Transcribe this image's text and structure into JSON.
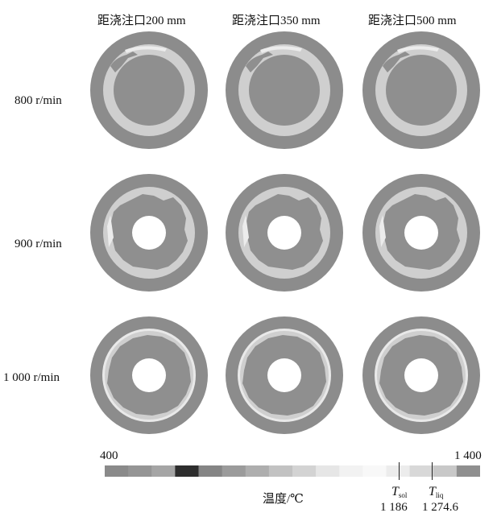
{
  "columns": [
    "距浇注口200 mm",
    "距浇注口350 mm",
    "距浇注口500 mm"
  ],
  "rows": [
    "800 r/min",
    "900 r/min",
    "1 000 r/min"
  ],
  "legend": {
    "min_label": "400",
    "max_label": "1 400",
    "title": "温度/℃",
    "solidus": {
      "symbol": "T",
      "sub": "sol",
      "value": "1 186"
    },
    "liquidus": {
      "symbol": "T",
      "sub": "liq",
      "value": "1 274.6"
    },
    "colors": [
      "#8a8a8a",
      "#959595",
      "#a5a5a5",
      "#2e2e2e",
      "#858585",
      "#9b9b9b",
      "#aeaeae",
      "#c2c2c2",
      "#d3d3d3",
      "#e6e6e6",
      "#f2f2f2",
      "#f8f8f8",
      "#ececec",
      "#d8d8d8",
      "#c8c8c8",
      "#8f8f8f"
    ]
  },
  "colors": {
    "shell": "#8c8c8c",
    "ring": "#cfcfcf",
    "melt": "#8f8f8f",
    "mushy": "#e9e9e9"
  }
}
